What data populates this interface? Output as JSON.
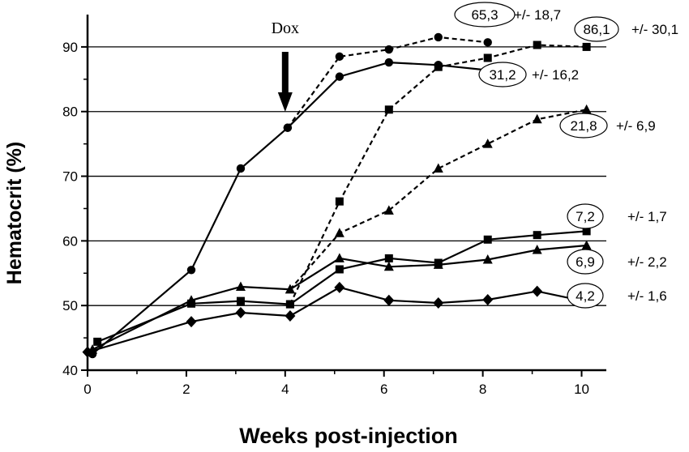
{
  "chart_data": {
    "type": "line",
    "title": "",
    "xlabel": "Weeks post-injection",
    "ylabel": "Hematocrit (%)",
    "xlim": [
      0,
      10.5
    ],
    "ylim": [
      40,
      95
    ],
    "xticks": [
      0,
      2,
      4,
      6,
      8,
      10
    ],
    "yticks": [
      40,
      50,
      60,
      70,
      80,
      90
    ],
    "gridlines_y": [
      50,
      60,
      70,
      80,
      90
    ],
    "colors": {
      "line": "#000000",
      "grid": "#000000",
      "background": "#ffffff"
    },
    "dox_marker": {
      "label": "Dox",
      "x": 4.0
    },
    "series": [
      {
        "name": "circle-solid",
        "marker": "circle",
        "dash": "solid",
        "x": [
          0.1,
          2.1,
          3.1,
          4.05,
          5.1,
          6.1,
          7.1,
          8.1
        ],
        "y": [
          42.5,
          55.5,
          71.2,
          77.5,
          85.4,
          87.6,
          87.2,
          86.4
        ],
        "annotation": {
          "value": "31,2",
          "sd": "+/- 16,2"
        }
      },
      {
        "name": "circle-dashed",
        "marker": "circle",
        "dash": "dashed",
        "x": [
          4.05,
          5.1,
          6.1,
          7.1,
          8.1
        ],
        "y": [
          77.5,
          88.5,
          89.6,
          91.5,
          90.7
        ],
        "annotation": {
          "value": "65,3",
          "sd": "+/- 18,7"
        }
      },
      {
        "name": "square-dashed",
        "marker": "square",
        "dash": "dashed",
        "x": [
          4.1,
          5.1,
          6.1,
          7.1,
          8.1,
          9.1,
          10.1
        ],
        "y": [
          50.2,
          66.1,
          80.3,
          86.9,
          88.3,
          90.3,
          90.0
        ],
        "annotation": {
          "value": "86,1",
          "sd": "+/- 30,1"
        }
      },
      {
        "name": "triangle-dashed",
        "marker": "triangle",
        "dash": "dashed",
        "x": [
          4.1,
          5.1,
          6.1,
          7.1,
          8.1,
          9.1,
          10.1
        ],
        "y": [
          52.5,
          61.2,
          64.7,
          71.2,
          75.0,
          78.8,
          80.3
        ],
        "annotation": {
          "value": "21,8",
          "sd": "+/- 6,9"
        }
      },
      {
        "name": "square-solid",
        "marker": "square",
        "dash": "solid",
        "x": [
          0.2,
          2.1,
          3.1,
          4.1,
          5.1,
          6.1,
          7.1,
          8.1,
          9.1,
          10.1
        ],
        "y": [
          44.4,
          50.3,
          50.7,
          50.2,
          55.6,
          57.3,
          56.6,
          60.2,
          60.9,
          61.5
        ],
        "annotation": {
          "value": "7,2",
          "sd": "+/- 1,7"
        }
      },
      {
        "name": "triangle-solid",
        "marker": "triangle",
        "dash": "solid",
        "x": [
          0.1,
          2.1,
          3.1,
          4.1,
          5.1,
          6.1,
          7.1,
          8.1,
          9.1,
          10.1
        ],
        "y": [
          43.2,
          50.8,
          52.9,
          52.5,
          57.3,
          56.0,
          56.3,
          57.1,
          58.6,
          59.3
        ],
        "annotation": {
          "value": "6,9",
          "sd": "+/- 2,2"
        }
      },
      {
        "name": "diamond-solid",
        "marker": "diamond",
        "dash": "solid",
        "x": [
          0.0,
          2.1,
          3.1,
          4.1,
          5.1,
          6.1,
          7.1,
          8.1,
          9.1,
          10.1
        ],
        "y": [
          42.8,
          47.5,
          48.9,
          48.4,
          52.8,
          50.8,
          50.4,
          50.9,
          52.2,
          50.6
        ],
        "annotation": {
          "value": "4,2",
          "sd": "+/- 1,6"
        }
      }
    ]
  }
}
